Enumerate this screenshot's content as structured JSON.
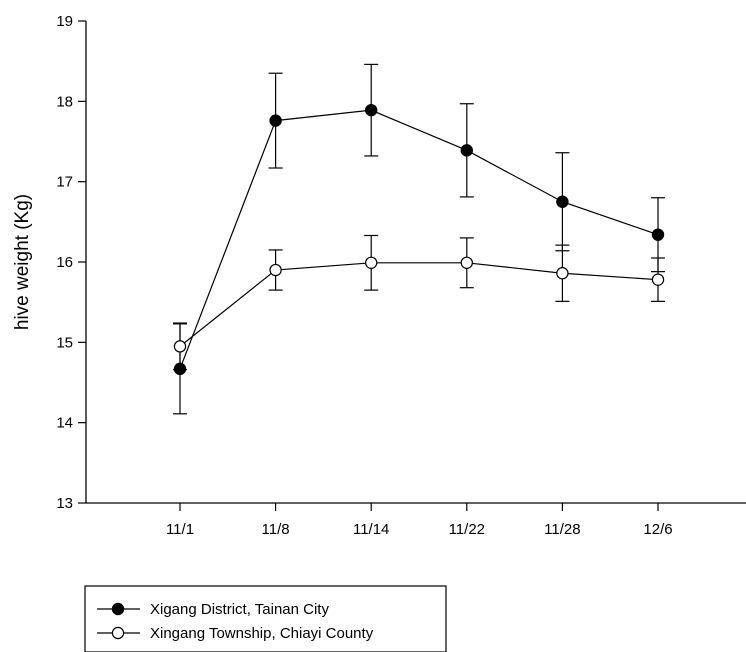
{
  "chart_data": {
    "type": "line",
    "title": "",
    "xlabel": "",
    "ylabel": "hive weight (Kg)",
    "ylim": [
      13,
      19
    ],
    "yticks": [
      13,
      14,
      15,
      16,
      17,
      18,
      19
    ],
    "categories": [
      "11/1",
      "11/8",
      "11/14",
      "11/22",
      "11/28",
      "12/6"
    ],
    "grid": false,
    "legend_placement": "bottom-left, below plot",
    "series": [
      {
        "name": "Xigang District, Tainan City",
        "marker": "filled-circle",
        "color": "#000000",
        "values": [
          14.67,
          17.76,
          17.89,
          17.39,
          16.75,
          16.34
        ],
        "error": [
          0.56,
          0.59,
          0.57,
          0.58,
          0.61,
          0.46
        ]
      },
      {
        "name": "Xingang Township, Chiayi County",
        "marker": "open-circle",
        "color": "#000000",
        "values": [
          14.95,
          15.9,
          15.99,
          15.99,
          15.86,
          15.78
        ],
        "error": [
          0.29,
          0.25,
          0.34,
          0.31,
          0.35,
          0.27
        ]
      }
    ]
  }
}
